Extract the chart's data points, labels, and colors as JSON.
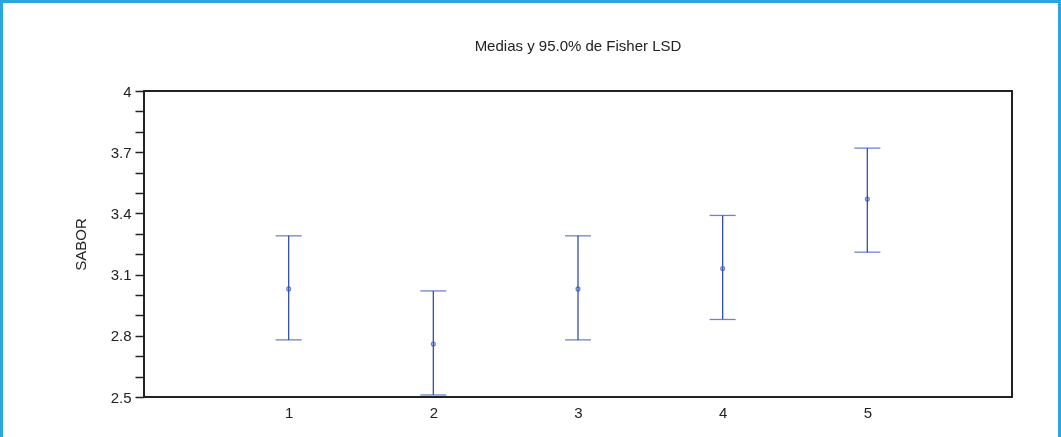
{
  "chart_data": {
    "type": "scatter",
    "title": "Medias y 95.0% de Fisher LSD",
    "ylabel": "SABOR",
    "categories": [
      "1",
      "2",
      "3",
      "4",
      "5"
    ],
    "series": [
      {
        "color": "#3050b0",
        "values": [
          3.03,
          2.76,
          3.03,
          3.13,
          3.47
        ],
        "errors": [
          [
            2.78,
            3.29
          ],
          [
            2.51,
            3.02
          ],
          [
            2.78,
            3.29
          ],
          [
            2.88,
            3.39
          ],
          [
            3.21,
            3.72
          ]
        ]
      }
    ],
    "ylim": [
      2.5,
      4.0
    ],
    "yticks": [
      2.5,
      {
        "value": 2.6,
        "label": null
      },
      {
        "value": 2.7,
        "label": null
      },
      2.8,
      {
        "value": 2.9,
        "label": null
      },
      {
        "value": 3.0,
        "label": null
      },
      3.1,
      {
        "value": 3.2,
        "label": null
      },
      {
        "value": 3.3,
        "label": null
      },
      3.4,
      {
        "value": 3.5,
        "label": null
      },
      {
        "value": 3.6,
        "label": null
      },
      3.7,
      {
        "value": 3.8,
        "label": null
      },
      {
        "value": 3.9,
        "label": null
      },
      4
    ],
    "marker": "circle",
    "grid": false
  }
}
